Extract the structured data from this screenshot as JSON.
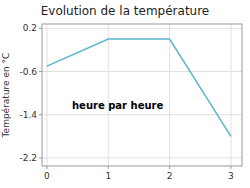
{
  "chart_data": {
    "type": "line",
    "title": "Evolution de la température",
    "ylabel": "Température en °C",
    "annotation": "heure par heure",
    "x": [
      0,
      1,
      2,
      3
    ],
    "values": [
      -0.5,
      0.0,
      0.0,
      -1.8
    ],
    "color": "#5ab5cc",
    "xlim": [
      -0.08,
      3.18
    ],
    "ylim": [
      -2.35,
      0.28
    ],
    "xticks": [
      0,
      1,
      2,
      3
    ],
    "yticks": [
      0.2,
      -0.6,
      -1.4,
      -2.2
    ],
    "grid": true
  }
}
